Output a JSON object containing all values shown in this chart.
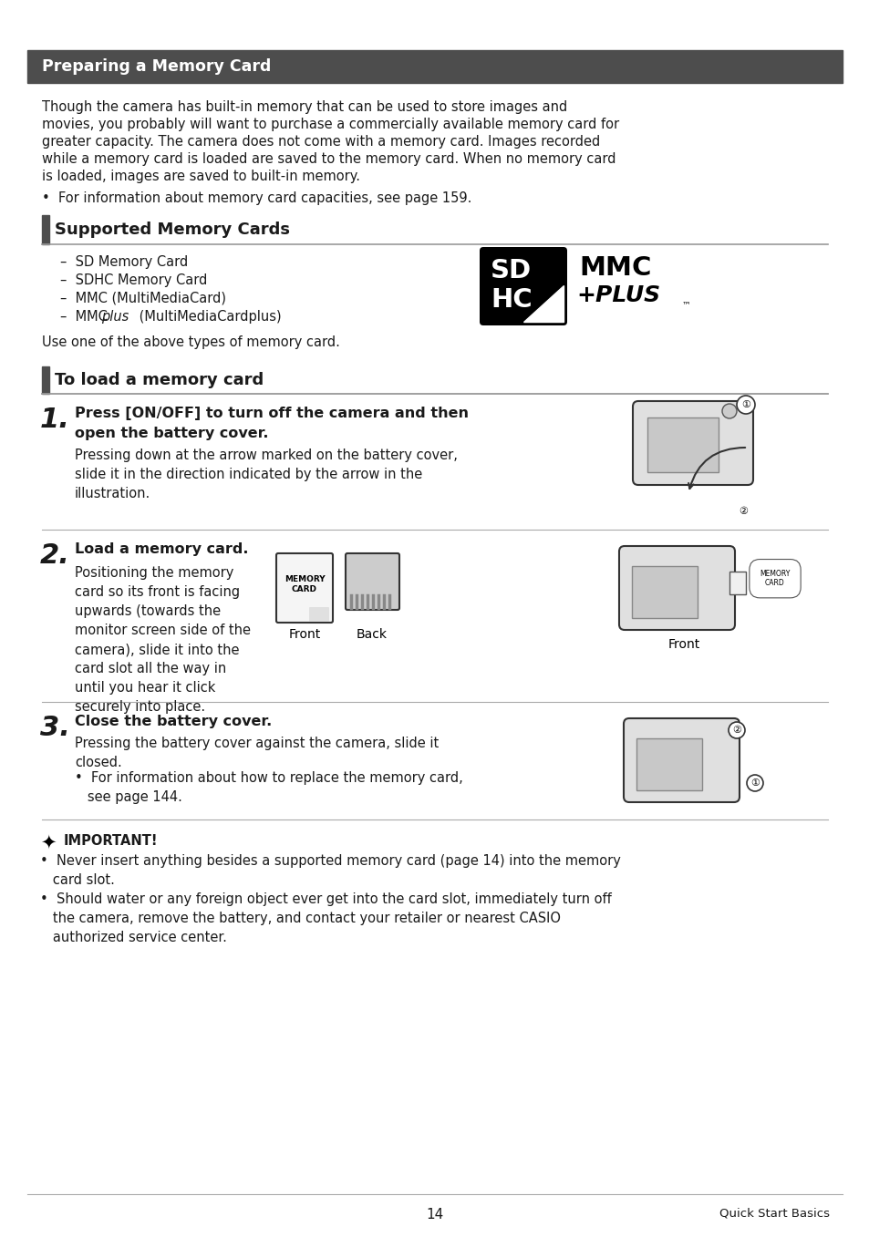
{
  "page_bg": "#ffffff",
  "header_bg": "#4d4d4d",
  "header_text_color": "#ffffff",
  "header_text": "Preparing a Memory Card",
  "section_bar_color": "#4d4d4d",
  "body_text_color": "#1a1a1a",
  "line_color": "#aaaaaa",
  "para1_lines": [
    "Though the camera has built-in memory that can be used to store images and",
    "movies, you probably will want to purchase a commercially available memory card for",
    "greater capacity. The camera does not come with a memory card. Images recorded",
    "while a memory card is loaded are saved to the memory card. When no memory card",
    "is loaded, images are saved to built-in memory."
  ],
  "bullet1": "•  For information about memory card capacities, see page 159.",
  "section2_title": "Supported Memory Cards",
  "section3_title": "To load a memory card",
  "mc_line1": "–  SD Memory Card",
  "mc_line2": "–  SDHC Memory Card",
  "mc_line3": "–  MMC (MultiMediaCard)",
  "mc_line4a": "–  MMC",
  "mc_line4b": "plus",
  "mc_line4c": " (MultiMediaCardplus)",
  "use_text": "Use one of the above types of memory card.",
  "step1_num": "1.",
  "step1_bold1": "Press [ON/OFF] to turn off the camera and then",
  "step1_bold2": "open the battery cover.",
  "step1_body": "Pressing down at the arrow marked on the battery cover,\nslide it in the direction indicated by the arrow in the\nillustration.",
  "step2_num": "2.",
  "step2_bold": "Load a memory card.",
  "step2_body": "Positioning the memory\ncard so its front is facing\nupwards (towards the\nmonitor screen side of the\ncamera), slide it into the\ncard slot all the way in\nuntil you hear it click\nsecurely into place.",
  "step3_num": "3.",
  "step3_bold": "Close the battery cover.",
  "step3_body": "Pressing the battery cover against the camera, slide it\nclosed.",
  "step3_bullet": "•  For information about how to replace the memory card,\n   see page 144.",
  "important_title": "IMPORTANT!",
  "imp_b1": "•  Never insert anything besides a supported memory card (page 14) into the memory\n   card slot.",
  "imp_b2": "•  Should water or any foreign object ever get into the card slot, immediately turn off\n   the camera, remove the battery, and contact your retailer or nearest CASIO\n   authorized service center.",
  "footer_page": "14",
  "footer_right": "Quick Start Basics",
  "front_label": "Front",
  "back_label": "Back",
  "front2_label": "Front"
}
